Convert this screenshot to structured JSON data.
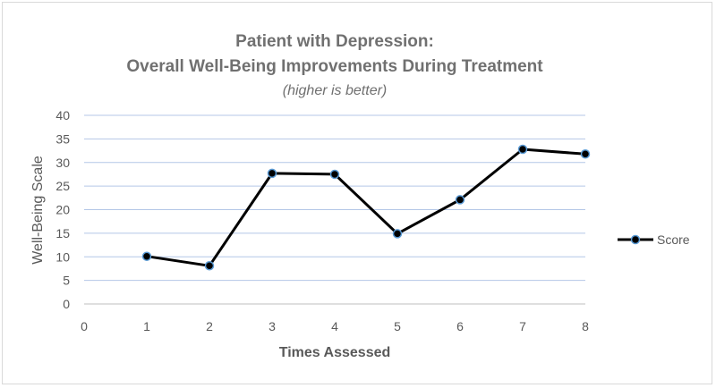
{
  "chart_data": {
    "type": "line",
    "title_line1": "Patient with Depression:",
    "title_line2": "Overall Well-Being Improvements During Treatment",
    "subtitle": "(higher is better)",
    "xlabel": "Times Assessed",
    "ylabel": "Well-Being Scale",
    "xlim": [
      0,
      8
    ],
    "ylim": [
      0,
      40
    ],
    "xticks": [
      0,
      1,
      2,
      3,
      4,
      5,
      6,
      7,
      8
    ],
    "yticks": [
      0,
      5,
      10,
      15,
      20,
      25,
      30,
      35,
      40
    ],
    "grid": true,
    "legend_position": "right",
    "series": [
      {
        "name": "Score",
        "color": "#000000",
        "marker_color": "#5b9bd5",
        "x": [
          1,
          2,
          3,
          4,
          5,
          6,
          7,
          8
        ],
        "y": [
          10.1,
          8.1,
          27.7,
          27.5,
          14.9,
          22.1,
          32.8,
          31.8
        ]
      }
    ]
  }
}
